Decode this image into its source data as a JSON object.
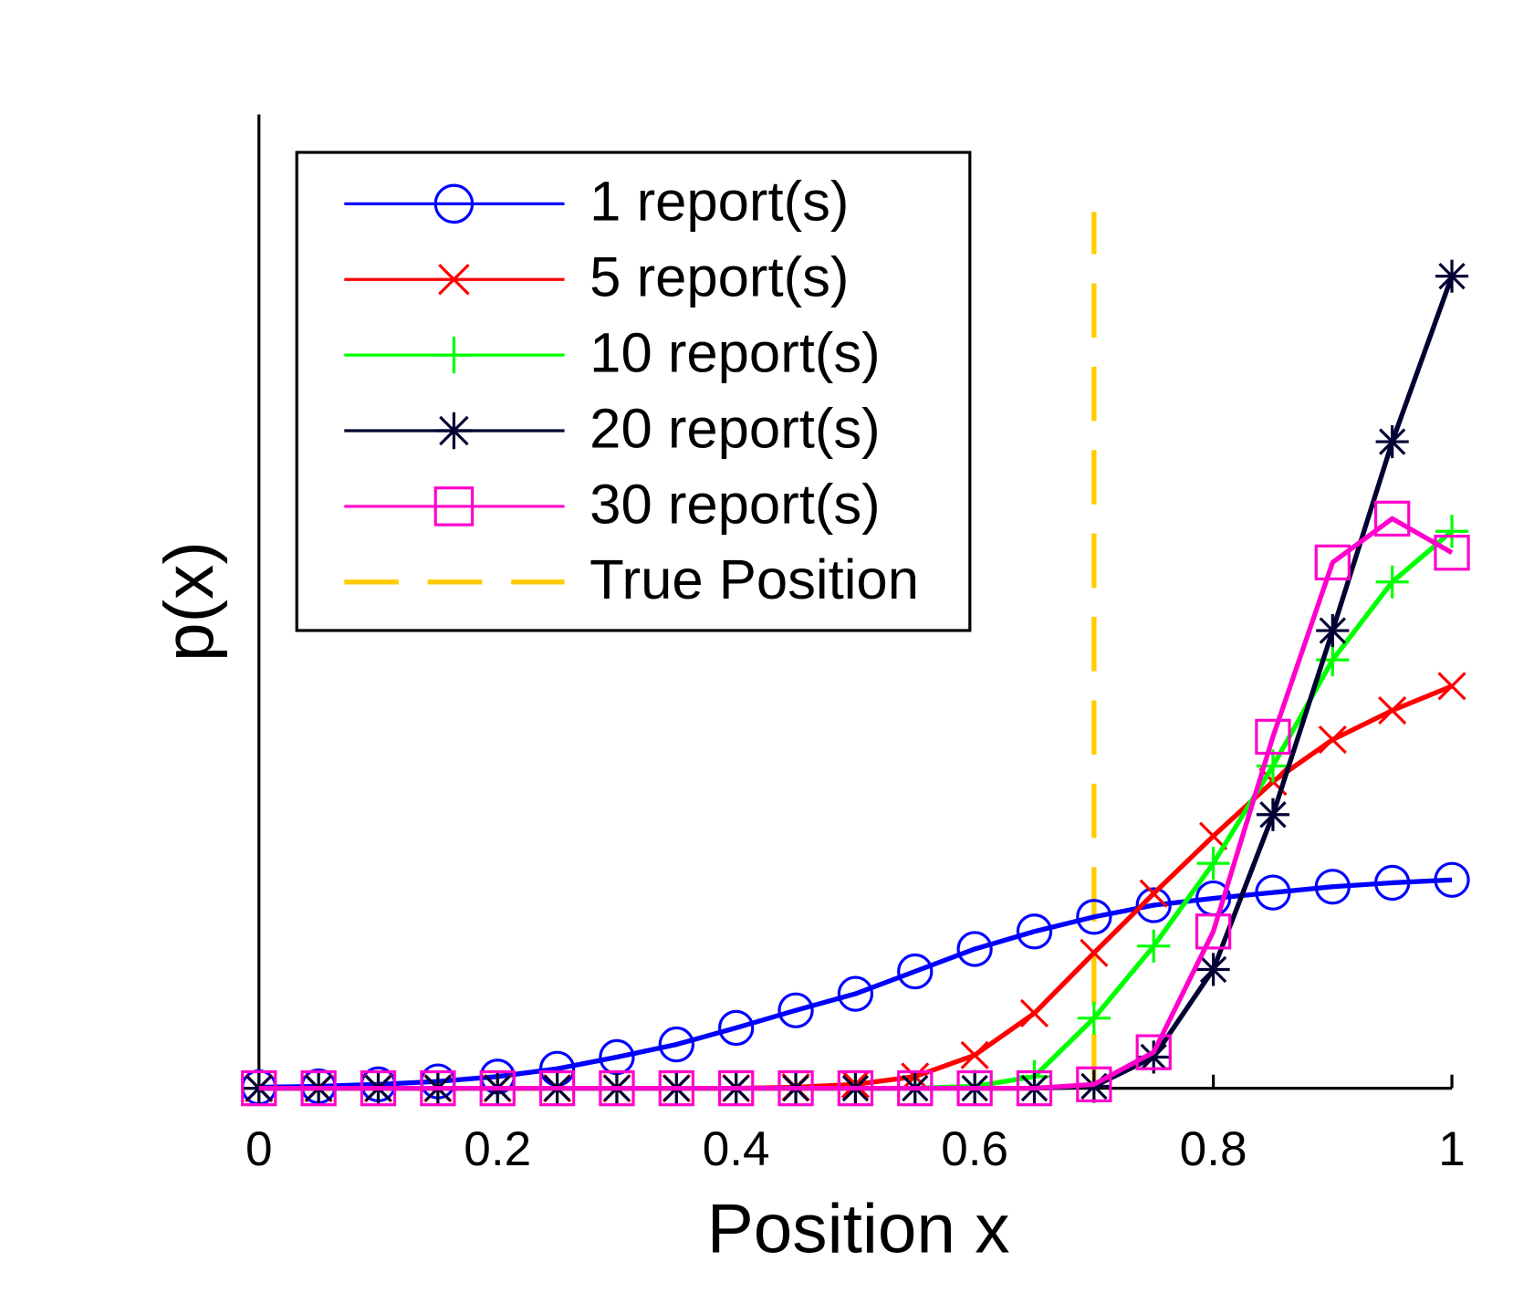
{
  "chart_data": {
    "type": "line",
    "xlabel": "Position x",
    "ylabel": "p(x)",
    "x": [
      0,
      0.05,
      0.1,
      0.15,
      0.2,
      0.25,
      0.3,
      0.35,
      0.4,
      0.45,
      0.5,
      0.55,
      0.6,
      0.65,
      0.7,
      0.75,
      0.8,
      0.85,
      0.9,
      0.95,
      1
    ],
    "series": [
      {
        "name": "1 report(s)",
        "color": "#0000ff",
        "marker": "circle",
        "values": [
          0.001,
          0.002,
          0.004,
          0.007,
          0.012,
          0.02,
          0.032,
          0.045,
          0.062,
          0.08,
          0.097,
          0.12,
          0.143,
          0.161,
          0.176,
          0.188,
          0.195,
          0.201,
          0.207,
          0.211,
          0.214
        ]
      },
      {
        "name": "5 report(s)",
        "color": "#ff0000",
        "marker": "x",
        "values": [
          0,
          0,
          0,
          0,
          0,
          0,
          0,
          0,
          0,
          0.001,
          0.004,
          0.012,
          0.034,
          0.077,
          0.139,
          0.2,
          0.259,
          0.315,
          0.358,
          0.388,
          0.413
        ]
      },
      {
        "name": "10 report(s)",
        "color": "#00ff00",
        "marker": "plus",
        "values": [
          0,
          0,
          0,
          0,
          0,
          0,
          0,
          0,
          0,
          0,
          0,
          0,
          0.002,
          0.012,
          0.072,
          0.146,
          0.231,
          0.331,
          0.44,
          0.52,
          0.572
        ]
      },
      {
        "name": "20 report(s)",
        "color": "#000033",
        "marker": "star",
        "values": [
          0,
          0,
          0,
          0,
          0,
          0,
          0,
          0,
          0,
          0,
          0,
          0,
          0,
          0,
          0.002,
          0.032,
          0.122,
          0.281,
          0.47,
          0.664,
          0.834
        ]
      },
      {
        "name": "30 report(s)",
        "color": "#ff00cc",
        "marker": "square",
        "values": [
          0,
          0,
          0,
          0,
          0,
          0,
          0,
          0,
          0,
          0,
          0,
          0,
          0,
          0,
          0.004,
          0.037,
          0.161,
          0.361,
          0.54,
          0.585,
          0.55
        ]
      }
    ],
    "vline": {
      "name": "True Position",
      "x": 0.7,
      "color": "#ffcc00"
    },
    "xlim": [
      0,
      1
    ],
    "xticks": [
      0,
      0.2,
      0.4,
      0.6,
      0.8,
      1
    ],
    "ylim": [
      0,
      1
    ],
    "legend": "upper left"
  }
}
